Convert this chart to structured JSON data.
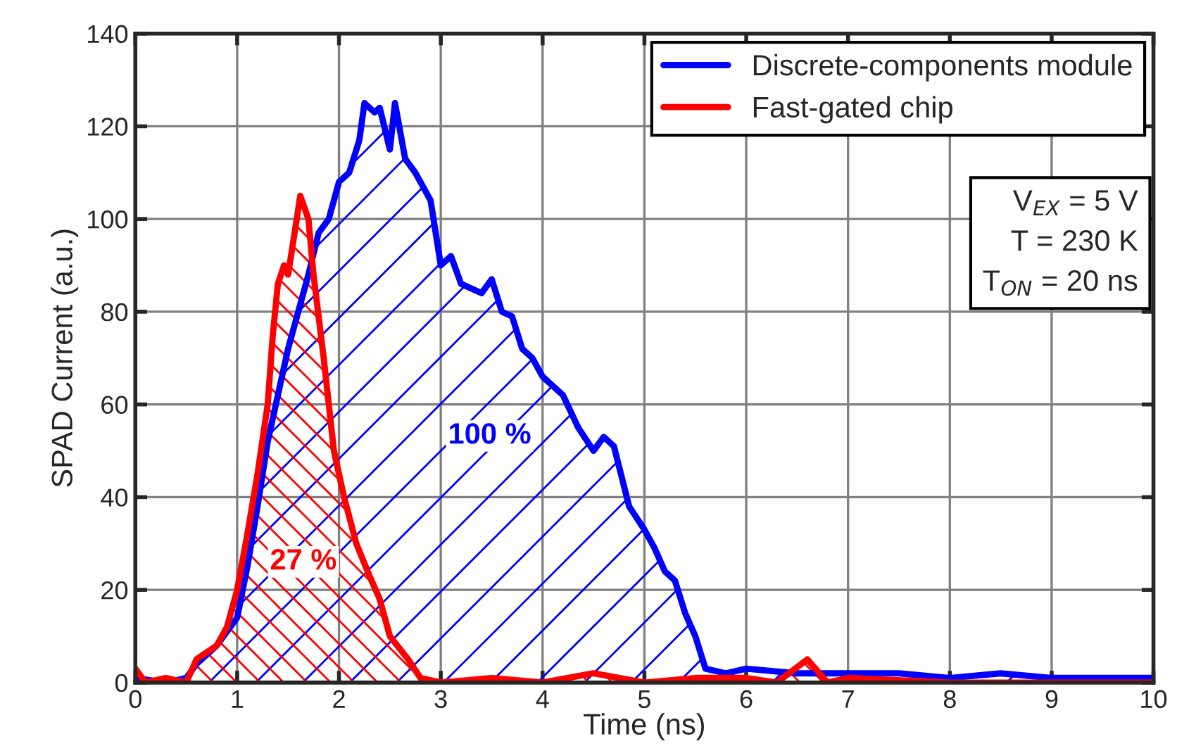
{
  "chart_data": {
    "type": "area",
    "xlabel": "Time (ns)",
    "ylabel": "SPAD Current (a.u.)",
    "xlim": [
      0,
      10
    ],
    "xticks": [
      0,
      1,
      2,
      3,
      4,
      5,
      6,
      7,
      8,
      9,
      10
    ],
    "ylim": [
      0,
      140
    ],
    "yticks": [
      0,
      20,
      40,
      60,
      80,
      100,
      120,
      140
    ],
    "grid": true,
    "legend": "top right",
    "series": [
      {
        "name": "Discrete-components module",
        "color": "#0000ff",
        "x": [
          0,
          0.3,
          0.5,
          0.6,
          0.8,
          1.0,
          1.1,
          1.2,
          1.3,
          1.4,
          1.5,
          1.6,
          1.7,
          1.8,
          1.9,
          2.0,
          2.1,
          2.2,
          2.25,
          2.35,
          2.4,
          2.5,
          2.55,
          2.65,
          2.75,
          2.9,
          3.0,
          3.1,
          3.2,
          3.4,
          3.5,
          3.6,
          3.7,
          3.8,
          3.9,
          4.0,
          4.2,
          4.35,
          4.5,
          4.6,
          4.7,
          4.85,
          5.0,
          5.1,
          5.2,
          5.3,
          5.4,
          5.5,
          5.6,
          5.8,
          6.0,
          6.5,
          7.0,
          7.5,
          8.0,
          8.5,
          9.0,
          9.5,
          10.0
        ],
        "values": [
          1,
          0,
          1,
          4,
          8,
          14,
          25,
          38,
          52,
          62,
          72,
          80,
          88,
          97,
          100,
          108,
          110,
          117,
          125,
          123,
          124,
          115,
          125,
          113,
          110,
          104,
          90,
          92,
          86,
          84,
          87,
          80,
          79,
          72,
          70,
          66,
          62,
          55,
          50,
          53,
          51,
          38,
          33,
          29,
          24,
          22,
          15,
          10,
          3,
          2,
          3,
          2,
          2,
          2,
          1,
          2,
          1,
          1,
          1
        ]
      },
      {
        "name": "Fast-gated chip",
        "color": "#ff0000",
        "x": [
          0,
          0.1,
          0.3,
          0.5,
          0.6,
          0.8,
          0.9,
          1.0,
          1.1,
          1.2,
          1.3,
          1.35,
          1.4,
          1.46,
          1.5,
          1.55,
          1.62,
          1.7,
          1.75,
          1.85,
          1.95,
          2.05,
          2.17,
          2.3,
          2.4,
          2.5,
          2.68,
          2.8,
          3.0,
          3.5,
          4.0,
          4.5,
          5.0,
          5.5,
          6.0,
          6.3,
          6.6,
          6.8,
          7.0,
          8.0,
          9.0,
          10.0
        ],
        "values": [
          3,
          0,
          1,
          0,
          5,
          8,
          12,
          20,
          32,
          45,
          60,
          75,
          86,
          90,
          88,
          95,
          105,
          100,
          88,
          70,
          50,
          40,
          30,
          23,
          18,
          10,
          5,
          1,
          0,
          1,
          0,
          2,
          0,
          1,
          1,
          0,
          5,
          0,
          1,
          0,
          0,
          0
        ]
      }
    ],
    "annotations": [
      "100 %",
      "27 %",
      "V$_{EX}$ = 5 V",
      "T = 230 K",
      "T$_{ON}$ = 20 ns"
    ]
  }
}
